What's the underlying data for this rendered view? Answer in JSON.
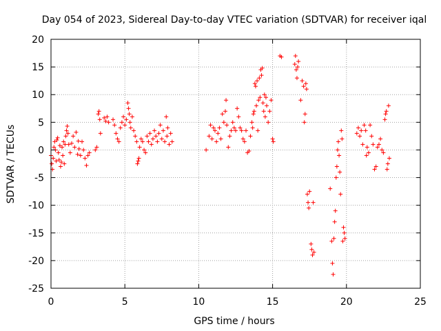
{
  "chart_data": {
    "type": "scatter",
    "title": "Day 054 of 2023, Sidereal Day-to-day VTEC variation (SDTVAR) for receiver iqal",
    "xlabel": "GPS time / hours",
    "ylabel": "SDTVAR / TECUs",
    "xlim": [
      0,
      25
    ],
    "ylim": [
      -25,
      20
    ],
    "x_ticks": [
      "0",
      "5",
      "10",
      "15",
      "20",
      "25"
    ],
    "y_ticks": [
      "20",
      "15",
      "10",
      "5",
      "0",
      "-5",
      "-10",
      "-15",
      "-20",
      "-25"
    ],
    "grid": true,
    "marker": "+",
    "color": "#ff0000",
    "series": [
      {
        "name": "SDTVAR",
        "points": [
          [
            0.0,
            -1.0
          ],
          [
            0.05,
            -2.5
          ],
          [
            0.1,
            -3.5
          ],
          [
            0.15,
            -1.5
          ],
          [
            0.2,
            0.5
          ],
          [
            0.25,
            1.5
          ],
          [
            0.3,
            0.0
          ],
          [
            0.35,
            -2.0
          ],
          [
            0.4,
            1.8
          ],
          [
            0.45,
            2.2
          ],
          [
            0.5,
            -0.5
          ],
          [
            0.55,
            -1.8
          ],
          [
            0.6,
            0.8
          ],
          [
            0.65,
            -3.0
          ],
          [
            0.7,
            -2.2
          ],
          [
            0.75,
            0.5
          ],
          [
            0.8,
            -1.0
          ],
          [
            0.85,
            1.5
          ],
          [
            0.9,
            -2.5
          ],
          [
            0.95,
            1.0
          ],
          [
            1.0,
            2.5
          ],
          [
            1.05,
            3.5
          ],
          [
            1.1,
            4.3
          ],
          [
            1.15,
            3.0
          ],
          [
            1.2,
            1.0
          ],
          [
            1.3,
            -0.5
          ],
          [
            1.4,
            1.2
          ],
          [
            1.5,
            2.5
          ],
          [
            1.6,
            0.5
          ],
          [
            1.7,
            3.2
          ],
          [
            1.8,
            -0.8
          ],
          [
            1.85,
            1.6
          ],
          [
            1.9,
            0.2
          ],
          [
            2.0,
            -1.0
          ],
          [
            2.1,
            1.5
          ],
          [
            2.2,
            0.0
          ],
          [
            2.3,
            -1.5
          ],
          [
            2.4,
            -2.8
          ],
          [
            2.5,
            -1.0
          ],
          [
            2.6,
            -0.5
          ],
          [
            3.0,
            0.0
          ],
          [
            3.1,
            0.5
          ],
          [
            3.2,
            6.5
          ],
          [
            3.25,
            7.0
          ],
          [
            3.3,
            5.5
          ],
          [
            3.35,
            3.0
          ],
          [
            3.6,
            5.8
          ],
          [
            3.7,
            5.2
          ],
          [
            3.8,
            6.0
          ],
          [
            3.9,
            5.0
          ],
          [
            4.2,
            5.5
          ],
          [
            4.3,
            4.5
          ],
          [
            4.4,
            3.0
          ],
          [
            4.5,
            2.0
          ],
          [
            4.6,
            1.5
          ],
          [
            4.7,
            4.0
          ],
          [
            4.8,
            5.0
          ],
          [
            4.9,
            6.0
          ],
          [
            5.0,
            4.5
          ],
          [
            5.1,
            5.5
          ],
          [
            5.2,
            8.5
          ],
          [
            5.25,
            7.5
          ],
          [
            5.3,
            6.5
          ],
          [
            5.35,
            5.0
          ],
          [
            5.4,
            4.0
          ],
          [
            5.5,
            6.0
          ],
          [
            5.6,
            3.5
          ],
          [
            5.7,
            2.5
          ],
          [
            5.8,
            1.5
          ],
          [
            5.85,
            -2.5
          ],
          [
            5.9,
            -2.0
          ],
          [
            5.95,
            -1.5
          ],
          [
            6.0,
            0.5
          ],
          [
            6.1,
            2.0
          ],
          [
            6.2,
            1.5
          ],
          [
            6.3,
            0.0
          ],
          [
            6.4,
            -0.5
          ],
          [
            6.5,
            2.5
          ],
          [
            6.6,
            1.5
          ],
          [
            6.7,
            3.0
          ],
          [
            6.8,
            1.0
          ],
          [
            6.9,
            2.0
          ],
          [
            7.0,
            3.5
          ],
          [
            7.1,
            2.5
          ],
          [
            7.2,
            1.5
          ],
          [
            7.3,
            3.0
          ],
          [
            7.4,
            4.5
          ],
          [
            7.5,
            2.0
          ],
          [
            7.6,
            3.5
          ],
          [
            7.7,
            1.5
          ],
          [
            7.8,
            6.0
          ],
          [
            7.85,
            2.5
          ],
          [
            7.9,
            4.0
          ],
          [
            8.0,
            1.0
          ],
          [
            8.1,
            3.0
          ],
          [
            8.2,
            1.5
          ],
          [
            10.5,
            0.0
          ],
          [
            10.7,
            2.5
          ],
          [
            10.8,
            4.5
          ],
          [
            10.9,
            2.0
          ],
          [
            11.0,
            4.0
          ],
          [
            11.1,
            3.5
          ],
          [
            11.2,
            1.5
          ],
          [
            11.3,
            3.0
          ],
          [
            11.4,
            4.0
          ],
          [
            11.5,
            2.0
          ],
          [
            11.6,
            6.5
          ],
          [
            11.7,
            5.0
          ],
          [
            11.8,
            7.0
          ],
          [
            11.85,
            9.0
          ],
          [
            11.9,
            4.5
          ],
          [
            12.0,
            0.5
          ],
          [
            12.1,
            2.5
          ],
          [
            12.2,
            3.5
          ],
          [
            12.3,
            5.0
          ],
          [
            12.4,
            4.0
          ],
          [
            12.5,
            3.5
          ],
          [
            12.6,
            7.5
          ],
          [
            12.7,
            6.0
          ],
          [
            12.8,
            4.0
          ],
          [
            12.9,
            3.5
          ],
          [
            13.0,
            2.0
          ],
          [
            13.1,
            1.5
          ],
          [
            13.2,
            3.5
          ],
          [
            13.3,
            -0.5
          ],
          [
            13.4,
            -0.2
          ],
          [
            13.5,
            2.5
          ],
          [
            13.6,
            5.0
          ],
          [
            13.65,
            4.0
          ],
          [
            13.7,
            6.5
          ],
          [
            13.75,
            7.0
          ],
          [
            13.8,
            12.0
          ],
          [
            13.85,
            11.5
          ],
          [
            13.9,
            8.0
          ],
          [
            13.95,
            12.5
          ],
          [
            14.0,
            3.5
          ],
          [
            14.05,
            9.0
          ],
          [
            14.1,
            13.0
          ],
          [
            14.15,
            9.5
          ],
          [
            14.2,
            14.5
          ],
          [
            14.25,
            13.5
          ],
          [
            14.3,
            14.8
          ],
          [
            14.35,
            8.5
          ],
          [
            14.4,
            7.0
          ],
          [
            14.45,
            10.0
          ],
          [
            14.5,
            6.0
          ],
          [
            14.55,
            9.5
          ],
          [
            14.6,
            8.0
          ],
          [
            14.7,
            5.0
          ],
          [
            14.8,
            7.0
          ],
          [
            14.9,
            9.0
          ],
          [
            15.0,
            2.0
          ],
          [
            15.05,
            1.5
          ],
          [
            15.5,
            17.0
          ],
          [
            15.6,
            16.8
          ],
          [
            16.5,
            15.5
          ],
          [
            16.55,
            17.0
          ],
          [
            16.6,
            14.5
          ],
          [
            16.65,
            13.0
          ],
          [
            16.7,
            15.0
          ],
          [
            16.75,
            16.0
          ],
          [
            16.9,
            9.0
          ],
          [
            17.0,
            12.5
          ],
          [
            17.1,
            11.5
          ],
          [
            17.15,
            5.0
          ],
          [
            17.2,
            6.5
          ],
          [
            17.25,
            12.0
          ],
          [
            17.3,
            11.0
          ],
          [
            17.35,
            -8.0
          ],
          [
            17.4,
            -9.5
          ],
          [
            17.45,
            -10.5
          ],
          [
            17.5,
            -7.5
          ],
          [
            17.6,
            -17.0
          ],
          [
            17.65,
            -18.0
          ],
          [
            17.7,
            -19.0
          ],
          [
            17.75,
            -9.5
          ],
          [
            17.8,
            -18.5
          ],
          [
            18.9,
            -7.0
          ],
          [
            19.0,
            -16.5
          ],
          [
            19.05,
            -20.5
          ],
          [
            19.1,
            -22.5
          ],
          [
            19.15,
            -16.0
          ],
          [
            19.2,
            -13.0
          ],
          [
            19.25,
            -11.0
          ],
          [
            19.3,
            -5.0
          ],
          [
            19.35,
            -3.0
          ],
          [
            19.4,
            0.0
          ],
          [
            19.45,
            1.5
          ],
          [
            19.5,
            -1.0
          ],
          [
            19.55,
            -4.0
          ],
          [
            19.6,
            -8.0
          ],
          [
            19.65,
            3.5
          ],
          [
            19.7,
            2.0
          ],
          [
            19.75,
            -16.5
          ],
          [
            19.8,
            -14.0
          ],
          [
            19.85,
            -15.0
          ],
          [
            19.9,
            -16.0
          ],
          [
            20.7,
            3.0
          ],
          [
            20.8,
            4.0
          ],
          [
            20.9,
            2.5
          ],
          [
            21.0,
            3.5
          ],
          [
            21.1,
            1.0
          ],
          [
            21.2,
            4.5
          ],
          [
            21.3,
            3.5
          ],
          [
            21.35,
            -1.0
          ],
          [
            21.4,
            0.5
          ],
          [
            21.5,
            -0.5
          ],
          [
            21.6,
            4.5
          ],
          [
            21.7,
            2.5
          ],
          [
            21.8,
            1.0
          ],
          [
            21.9,
            -3.5
          ],
          [
            22.0,
            -3.0
          ],
          [
            22.1,
            0.5
          ],
          [
            22.2,
            1.0
          ],
          [
            22.3,
            2.0
          ],
          [
            22.4,
            0.0
          ],
          [
            22.5,
            -0.5
          ],
          [
            22.6,
            5.5
          ],
          [
            22.65,
            6.5
          ],
          [
            22.7,
            7.0
          ],
          [
            22.75,
            -3.5
          ],
          [
            22.8,
            -2.5
          ],
          [
            22.85,
            8.0
          ],
          [
            22.9,
            -1.5
          ]
        ]
      }
    ]
  }
}
